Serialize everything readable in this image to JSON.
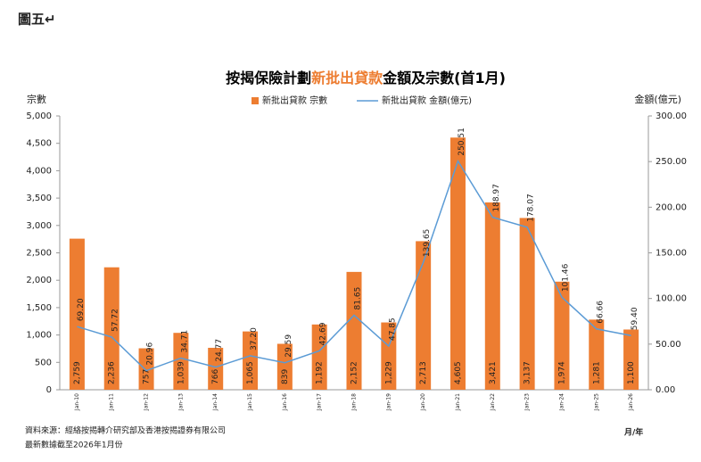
{
  "figure_label": "圖五↵",
  "chart_data": {
    "type": "bar_line",
    "title_parts": [
      "按揭保險計劃",
      "新批出貸款",
      "金額及宗數(首1月)"
    ],
    "title_colors": [
      "#000000",
      "#ED7D31",
      "#000000"
    ],
    "y_label": "宗數",
    "y2_label": "金額(億元)",
    "x_label": "月/年",
    "categories": [
      "Jan-10",
      "Jan-11",
      "Jan-12",
      "Jan-13",
      "Jan-14",
      "Jan-15",
      "Jan-16",
      "Jan-17",
      "Jan-18",
      "Jan-19",
      "Jan-20",
      "Jan-21",
      "Jan-22",
      "Jan-23",
      "Jan-24",
      "Jan-25",
      "Jan-26"
    ],
    "series": [
      {
        "name": "新批出貸款 宗數",
        "color": "#ED7D31",
        "kind": "bar",
        "values": [
          2759,
          2236,
          757,
          1039,
          766,
          1065,
          839,
          1192,
          2152,
          1229,
          2713,
          4605,
          3421,
          3137,
          1974,
          1281,
          1100
        ],
        "value_labels": [
          "2,759",
          "2,236",
          "757",
          "1,039",
          "766",
          "1,065",
          "839",
          "1,192",
          "2,152",
          "1,229",
          "2,713",
          "4,605",
          "3,421",
          "3,137",
          "1,974",
          "1,281",
          "1,100"
        ]
      },
      {
        "name": "新批出貸款 金額(億元)",
        "color": "#5B9BD5",
        "kind": "line",
        "axis": "y2",
        "values": [
          69.2,
          57.72,
          20.96,
          34.71,
          24.77,
          37.2,
          29.59,
          42.69,
          81.65,
          47.85,
          139.65,
          250.51,
          188.97,
          178.07,
          101.46,
          66.66,
          59.4
        ],
        "value_labels": [
          "69.20",
          "57.72",
          "20.96",
          "34.71",
          "24.77",
          "37.20",
          "29.59",
          "42.69",
          "81.65",
          "47.85",
          "139.65",
          "250.51",
          "188.97",
          "178.07",
          "101.46",
          "66.66",
          "59.40"
        ]
      }
    ],
    "ylim": [
      0,
      5000
    ],
    "yticks": [
      0,
      500,
      {
        "value": 1000,
        "label": "1,000"
      },
      {
        "value": 1500,
        "label": "1,500"
      },
      {
        "value": 2000,
        "label": "2,000"
      },
      {
        "value": 2500,
        "label": "2,500"
      },
      {
        "value": 3000,
        "label": "3,000"
      },
      {
        "value": 3500,
        "label": "3,500"
      },
      {
        "value": 4000,
        "label": "4,000"
      },
      {
        "value": 4500,
        "label": "4,500"
      },
      {
        "value": 5000,
        "label": "5,000"
      }
    ],
    "y2lim": [
      0,
      300
    ],
    "y2ticks": [
      {
        "value": 0,
        "label": "0.00"
      },
      {
        "value": 50,
        "label": "50.00"
      },
      {
        "value": 100,
        "label": "100.00"
      },
      {
        "value": 150,
        "label": "150.00"
      },
      {
        "value": 200,
        "label": "200.00"
      },
      {
        "value": 250,
        "label": "250.00"
      },
      {
        "value": 300,
        "label": "300.00"
      }
    ],
    "source_notes": [
      "資料來源：經絡按揭轉介研究部及香港按揭證券有限公司",
      "最新數據截至2026年1月份"
    ]
  }
}
